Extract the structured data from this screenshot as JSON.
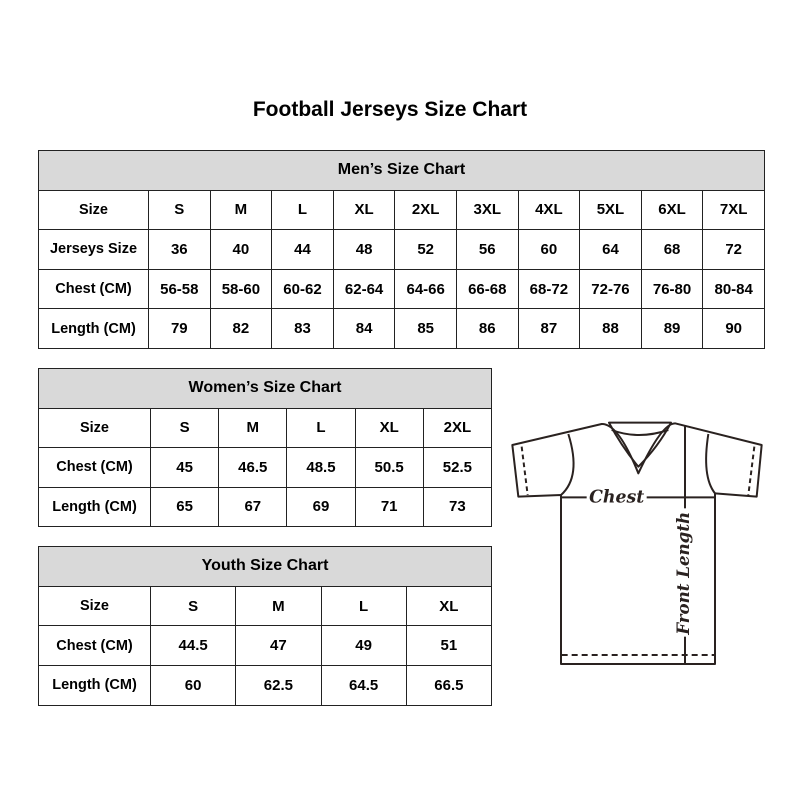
{
  "title": "Football Jerseys Size Chart",
  "men": {
    "heading": "Men’s Size Chart",
    "rows": [
      {
        "label": "Size",
        "values": [
          "S",
          "M",
          "L",
          "XL",
          "2XL",
          "3XL",
          "4XL",
          "5XL",
          "6XL",
          "7XL"
        ]
      },
      {
        "label": "Jerseys Size",
        "values": [
          "36",
          "40",
          "44",
          "48",
          "52",
          "56",
          "60",
          "64",
          "68",
          "72"
        ]
      },
      {
        "label": "Chest (CM)",
        "values": [
          "56-58",
          "58-60",
          "60-62",
          "62-64",
          "64-66",
          "66-68",
          "68-72",
          "72-76",
          "76-80",
          "80-84"
        ]
      },
      {
        "label": "Length (CM)",
        "values": [
          "79",
          "82",
          "83",
          "84",
          "85",
          "86",
          "87",
          "88",
          "89",
          "90"
        ]
      }
    ]
  },
  "women": {
    "heading": "Women’s Size Chart",
    "rows": [
      {
        "label": "Size",
        "values": [
          "S",
          "M",
          "L",
          "XL",
          "2XL"
        ]
      },
      {
        "label": "Chest (CM)",
        "values": [
          "45",
          "46.5",
          "48.5",
          "50.5",
          "52.5"
        ]
      },
      {
        "label": "Length (CM)",
        "values": [
          "65",
          "67",
          "69",
          "71",
          "73"
        ]
      }
    ]
  },
  "youth": {
    "heading": "Youth Size Chart",
    "rows": [
      {
        "label": "Size",
        "values": [
          "S",
          "M",
          "L",
          "XL"
        ]
      },
      {
        "label": "Chest (CM)",
        "values": [
          "44.5",
          "47",
          "49",
          "51"
        ]
      },
      {
        "label": "Length (CM)",
        "values": [
          "60",
          "62.5",
          "64.5",
          "66.5"
        ]
      }
    ]
  },
  "diagram": {
    "chest_label": "Chest",
    "length_label": "Front Length"
  },
  "colors": {
    "header_bg": "#d9d9d9",
    "border": "#222222"
  }
}
